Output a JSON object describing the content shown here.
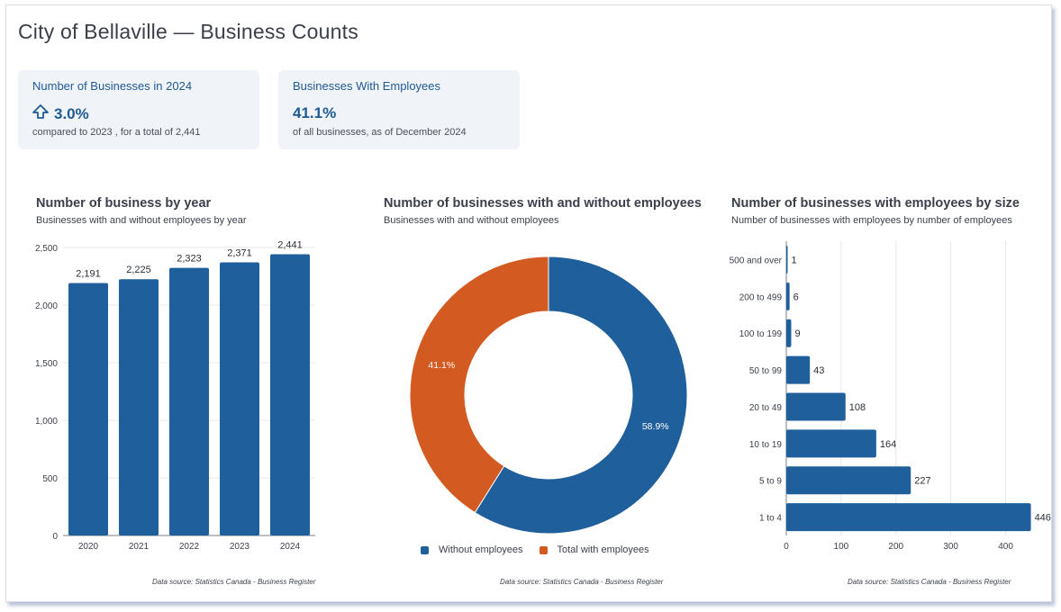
{
  "page": {
    "title": "City of Bellaville — Business Counts"
  },
  "kpis": [
    {
      "title": "Number of Businesses in 2024",
      "value": "3.0%",
      "icon": "up-arrow-icon",
      "subtitle": "compared to 2023 , for a total of 2,441"
    },
    {
      "title": "Businesses With Employees",
      "value": "41.1%",
      "subtitle": "of all businesses, as of December 2024"
    }
  ],
  "colors": {
    "blue": "#1f5f9b",
    "orange": "#d35a20",
    "accent_text": "#1e5a94"
  },
  "source_note": "Data source: Statistics Canada - Business Register",
  "chart_data": [
    {
      "type": "bar",
      "title": "Number of business by year",
      "subtitle": "Businesses with and without employees by year",
      "categories": [
        "2020",
        "2021",
        "2022",
        "2023",
        "2024"
      ],
      "values": [
        2191,
        2225,
        2323,
        2371,
        2441
      ],
      "value_labels": [
        "2,191",
        "2,225",
        "2,323",
        "2,371",
        "2,441"
      ],
      "yticks": [
        0,
        500,
        1000,
        1500,
        2000,
        2500
      ],
      "ytick_labels": [
        "0",
        "500",
        "1,000",
        "1,500",
        "2,000",
        "2,500"
      ],
      "ylim": [
        0,
        2500
      ]
    },
    {
      "type": "pie",
      "donut": true,
      "title": "Number of businesses with and without employees",
      "subtitle": "Businesses with and without employees",
      "labels": [
        "Without employees",
        "Total with employees"
      ],
      "values": [
        58.9,
        41.1
      ],
      "value_labels": [
        "58.9%",
        "41.1%"
      ]
    },
    {
      "type": "bar",
      "orientation": "horizontal",
      "title": "Number of businesses with employees by size",
      "subtitle": "Number of businesses with employees by number of employees",
      "categories": [
        "500 and over",
        "200 to 499",
        "100 to 199",
        "50 to 99",
        "20 to 49",
        "10 to 19",
        "5 to 9",
        "1 to 4"
      ],
      "values": [
        1,
        6,
        9,
        43,
        108,
        164,
        227,
        446
      ],
      "xticks": [
        0,
        100,
        200,
        300,
        400
      ],
      "xlim": [
        0,
        450
      ]
    }
  ]
}
